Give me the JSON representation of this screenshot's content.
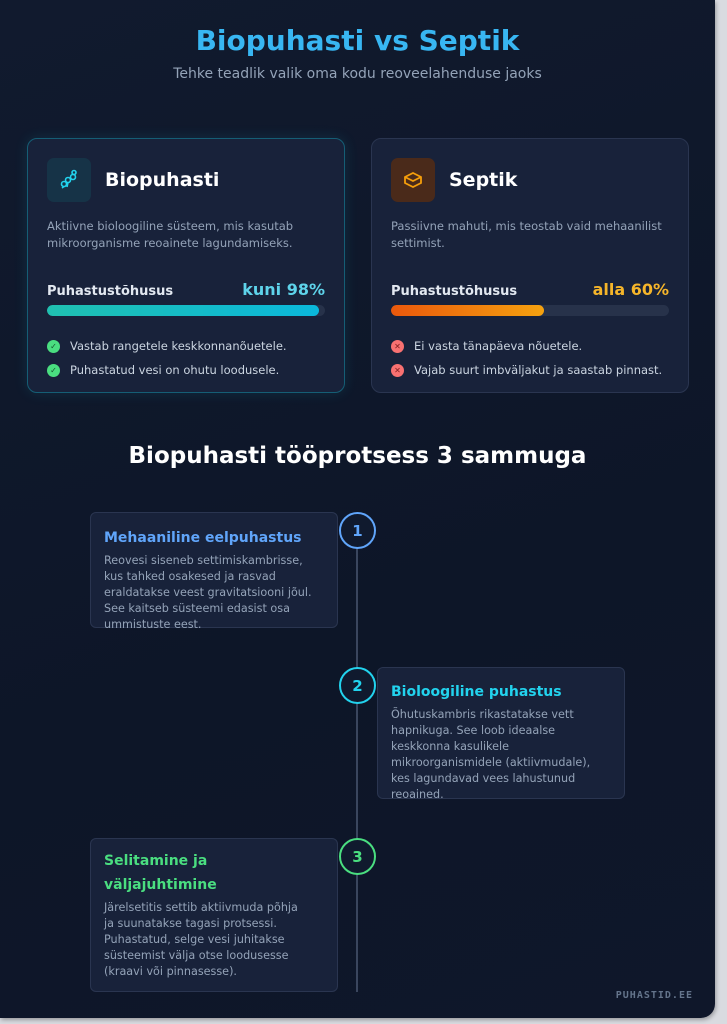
{
  "header": {
    "title": "Biopuhasti vs Septik",
    "subtitle": "Tehke teadlik valik oma kodu reoveelahenduse jaoks"
  },
  "comparison": [
    {
      "name": "Biopuhasti",
      "icon": "bacteria-icon",
      "description": "Aktiivne bioloogiline süsteem, mis kasutab mikroorganisme reoainete lagundamiseks.",
      "efficiency_label": "Puhastustõhusus",
      "efficiency_value": "kuni 98%",
      "efficiency_fill_percent": 98,
      "accent": "#22d3ee",
      "points": [
        "Vastab rangetele keskkonnanõuetele.",
        "Puhastatud vesi on ohutu loodusele."
      ],
      "point_status": "positive"
    },
    {
      "name": "Septik",
      "icon": "tank-icon",
      "description": "Passiivne mahuti, mis teostab vaid mehaanilist settimist.",
      "efficiency_label": "Puhastustõhusus",
      "efficiency_value": "alla 60%",
      "efficiency_fill_percent": 55,
      "accent": "#f59e0b",
      "points": [
        "Ei vasta tänapäeva nõuetele.",
        "Vajab suurt imbväljakut ja saastab pinnast."
      ],
      "point_status": "negative"
    }
  ],
  "process": {
    "title": "Biopuhasti tööprotsess 3 sammuga",
    "steps": [
      {
        "number": "1",
        "title": "Mehaaniline eelpuhastus",
        "text": "Reovesi siseneb settimiskambrisse, kus tahked osakesed ja rasvad eraldatakse veest gravitatsiooni jõul. See kaitseb süsteemi edasist osa ummistuste eest.",
        "color": "#60a5fa"
      },
      {
        "number": "2",
        "title": "Bioloogiline puhastus",
        "text": "Õhutuskambris rikastatakse vett hapnikuga. See loob ideaalse keskkonna kasulikele mikroorganismidele (aktiivmudale), kes lagundavad vees lahustunud reoained.",
        "color": "#22d3ee"
      },
      {
        "number": "3",
        "title": "Selitamine ja väljajuhtimine",
        "text": "Järelsetitis settib aktiivmuda põhja ja suunatakse tagasi protsessi. Puhastatud, selge vesi juhitakse süsteemist välja otse loodusesse (kraavi või pinnasesse).",
        "color": "#4ade80"
      }
    ]
  },
  "footer": {
    "brand": "PUHASTID.EE"
  }
}
